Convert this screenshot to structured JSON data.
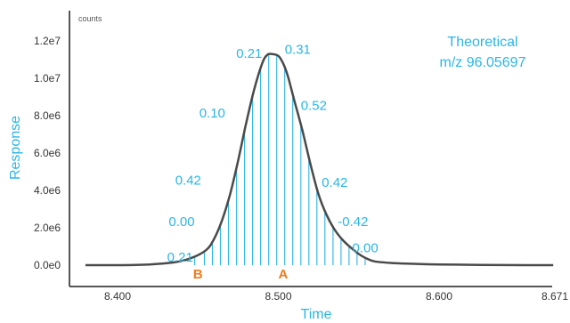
{
  "chart_data": {
    "type": "line",
    "title": "",
    "xlabel": "Time",
    "ylabel": "Response",
    "y_units": "counts",
    "xlim": [
      8.38,
      8.671
    ],
    "ylim": [
      0,
      12500000
    ],
    "x_ticks": [
      {
        "value": 8.4,
        "label": "8.400"
      },
      {
        "value": 8.5,
        "label": "8.500"
      },
      {
        "value": 8.6,
        "label": "8.600"
      },
      {
        "value": 8.671,
        "label": "8.671"
      }
    ],
    "y_ticks": [
      {
        "value": 0,
        "label": "0.0e0"
      },
      {
        "value": 2000000,
        "label": "2.0e6"
      },
      {
        "value": 4000000,
        "label": "4.0e6"
      },
      {
        "value": 6000000,
        "label": "6.0e6"
      },
      {
        "value": 8000000,
        "label": "8.0e6"
      },
      {
        "value": 10000000,
        "label": "1.0e7"
      },
      {
        "value": 12000000,
        "label": "1.2e7"
      }
    ],
    "grid": false,
    "series": [
      {
        "x": [
          8.38,
          8.4,
          8.42,
          8.435,
          8.445,
          8.455,
          8.46,
          8.465,
          8.47,
          8.475,
          8.48,
          8.485,
          8.49,
          8.493,
          8.496,
          8.5,
          8.503,
          8.506,
          8.51,
          8.515,
          8.52,
          8.525,
          8.53,
          8.535,
          8.54,
          8.545,
          8.55,
          8.555,
          8.56,
          8.57,
          8.58,
          8.6,
          8.62,
          8.64,
          8.671
        ],
        "y": [
          0,
          0,
          40000,
          150000,
          350000,
          800000,
          1400000,
          2400000,
          3800000,
          5600000,
          7600000,
          9400000,
          10800000,
          11250000,
          11300000,
          11200000,
          10800000,
          10100000,
          8800000,
          7200000,
          5400000,
          3800000,
          2700000,
          1900000,
          1350000,
          950000,
          600000,
          350000,
          200000,
          120000,
          80000,
          40000,
          20000,
          5000,
          0
        ]
      }
    ],
    "sample_lines_x": [
      8.448,
      8.454,
      8.459,
      8.464,
      8.469,
      8.474,
      8.479,
      8.484,
      8.489,
      8.494,
      8.499,
      8.504,
      8.509,
      8.514,
      8.519,
      8.524,
      8.529,
      8.534,
      8.539,
      8.544,
      8.549,
      8.554
    ],
    "mass_error_labels": [
      {
        "text": "0.21",
        "x": 8.447,
        "y": 200000,
        "anchor": "end"
      },
      {
        "text": "0.00",
        "x": 8.448,
        "y": 2100000,
        "anchor": "end"
      },
      {
        "text": "0.42",
        "x": 8.452,
        "y": 4300000,
        "anchor": "end"
      },
      {
        "text": "0.10",
        "x": 8.467,
        "y": 7900000,
        "anchor": "end"
      },
      {
        "text": "0.21",
        "x": 8.49,
        "y": 11100000,
        "anchor": "end"
      },
      {
        "text": "0.31",
        "x": 8.504,
        "y": 11300000,
        "anchor": "start"
      },
      {
        "text": "0.52",
        "x": 8.514,
        "y": 8300000,
        "anchor": "start"
      },
      {
        "text": "0.42",
        "x": 8.527,
        "y": 4200000,
        "anchor": "start"
      },
      {
        "text": "-0.42",
        "x": 8.537,
        "y": 2100000,
        "anchor": "start"
      },
      {
        "text": "0.00",
        "x": 8.546,
        "y": 700000,
        "anchor": "start"
      }
    ],
    "markers": [
      {
        "text": "B",
        "x": 8.45
      },
      {
        "text": "A",
        "x": 8.503
      }
    ],
    "annotation_lines": [
      "Theoretical",
      "m/z 96.05697"
    ]
  },
  "colors": {
    "accent": "#29b6e8",
    "marker": "#f07c1e",
    "curve": "#4a4a4a",
    "axis": "#555555"
  }
}
